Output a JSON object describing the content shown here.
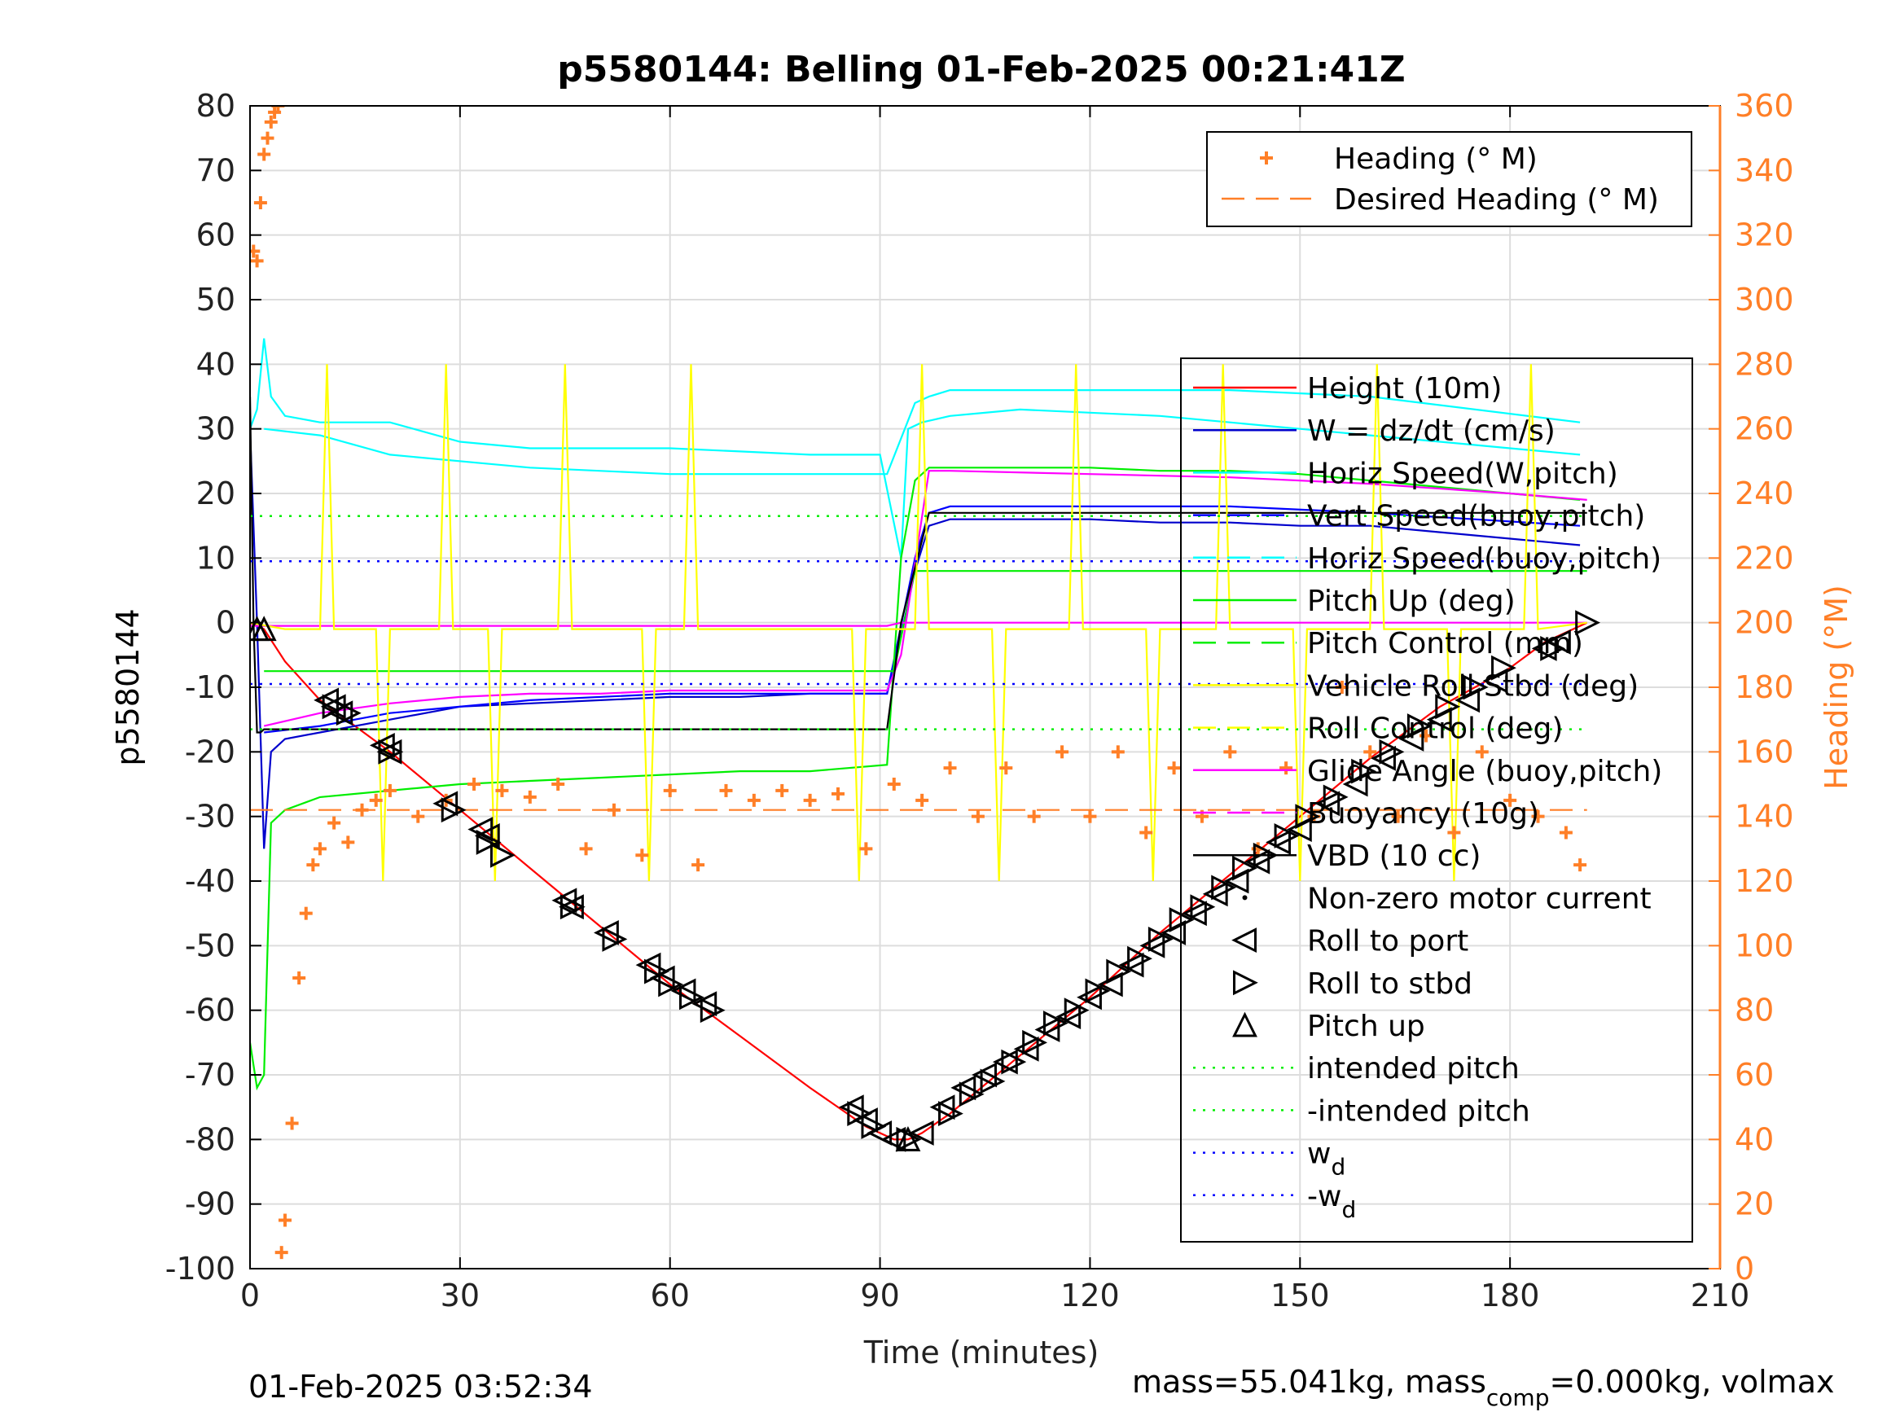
{
  "chart_data": {
    "type": "line",
    "title": "p5580144: Belling 01-Feb-2025 00:21:41Z",
    "xlabel": "Time (minutes)",
    "ylabel_left": "p5580144",
    "ylabel_right": "Heading (°M)",
    "xlim": [
      0,
      210
    ],
    "ylim_left": [
      -100,
      80
    ],
    "ylim_right": [
      0,
      360
    ],
    "xticks": [
      0,
      30,
      60,
      90,
      120,
      150,
      180,
      210
    ],
    "yticks_left": [
      -100,
      -90,
      -80,
      -70,
      -60,
      -50,
      -40,
      -30,
      -20,
      -10,
      0,
      10,
      20,
      30,
      40,
      50,
      60,
      70,
      80
    ],
    "yticks_right": [
      0,
      20,
      40,
      60,
      80,
      100,
      120,
      140,
      160,
      180,
      200,
      220,
      240,
      260,
      280,
      300,
      320,
      340,
      360
    ],
    "grid": true,
    "footer_left": "01-Feb-2025 03:52:34",
    "footer_right": {
      "a": "mass=55.041kg, mass",
      "sub": "comp",
      "b": "=0.000kg, volmax"
    },
    "colors": {
      "heading": "#ff7f27",
      "depth": "#ff0000",
      "w": "#0000cc",
      "horiz_w": "#00ffff",
      "vert_buoy": "#0000ff",
      "pitch": "#00ee00",
      "roll": "#ffff00",
      "glide": "#ff00ff",
      "vbd": "#000000",
      "intended": "#00ee00",
      "wd": "#0000ff"
    },
    "legend_heading": [
      {
        "label": "Heading (° M)",
        "style": "plus",
        "color": "#ff7f27"
      },
      {
        "label": "Desired Heading (° M)",
        "style": "dash",
        "color": "#ff7f27"
      }
    ],
    "legend_main": [
      {
        "label": "Height (10m)",
        "style": "solid",
        "color": "#ff0000"
      },
      {
        "label": "W = dz/dt (cm/s)",
        "style": "solid",
        "color": "#0000cc"
      },
      {
        "label": "Horiz Speed(W,pitch)",
        "style": "solid",
        "color": "#00ffff"
      },
      {
        "label": "Vert Speed(buoy,pitch)",
        "style": "dash",
        "color": "#0000ff"
      },
      {
        "label": "Horiz Speed(buoy,pitch)",
        "style": "dash",
        "color": "#00ffff"
      },
      {
        "label": "Pitch Up (deg)",
        "style": "solid",
        "color": "#00ee00"
      },
      {
        "label": "Pitch Control (mm)",
        "style": "dash",
        "color": "#00ee00"
      },
      {
        "label": "Vehicle Roll Stbd (deg)",
        "style": "solid",
        "color": "#ffff00"
      },
      {
        "label": "Roll Control (deg)",
        "style": "dash",
        "color": "#ffff00"
      },
      {
        "label": "Glide Angle (buoy,pitch)",
        "style": "solid",
        "color": "#ff00ff"
      },
      {
        "label": "Buoyancy (10g)",
        "style": "dash",
        "color": "#ff00ff"
      },
      {
        "label": "VBD (10 cc)",
        "style": "solid",
        "color": "#000000"
      },
      {
        "label": "Non-zero motor current",
        "style": "dot",
        "color": "#000000"
      },
      {
        "label": "Roll to port",
        "style": "tri-left",
        "color": "#000000"
      },
      {
        "label": "Roll to stbd",
        "style": "tri-right",
        "color": "#000000"
      },
      {
        "label": "Pitch up",
        "style": "tri-up",
        "color": "#000000"
      },
      {
        "label": "intended pitch",
        "style": "dotted",
        "color": "#00ee00"
      },
      {
        "label": "-intended pitch",
        "style": "dotted",
        "color": "#00ee00"
      },
      {
        "label": "w",
        "sub": "d",
        "style": "dotted",
        "color": "#0000ff"
      },
      {
        "label": "-w",
        "sub": "d",
        "style": "dotted",
        "color": "#0000ff"
      }
    ],
    "series": [
      {
        "name": "Height (10m)",
        "axis": "left",
        "color": "#ff0000",
        "x": [
          0,
          2,
          5,
          10,
          15,
          20,
          30,
          40,
          50,
          60,
          70,
          80,
          88,
          92,
          94,
          96,
          100,
          110,
          120,
          130,
          140,
          150,
          160,
          170,
          180,
          185,
          191
        ],
        "y": [
          0,
          -1,
          -6,
          -12,
          -16,
          -20,
          -29,
          -38,
          -47,
          -56,
          -64,
          -72,
          -78,
          -80,
          -80,
          -79,
          -76,
          -67,
          -58,
          -48,
          -39,
          -30,
          -21,
          -13,
          -7,
          -3,
          0
        ]
      },
      {
        "name": "W = dz/dt (cm/s)",
        "axis": "left",
        "color": "#0000cc",
        "x": [
          0,
          1,
          2,
          3,
          5,
          10,
          20,
          30,
          40,
          50,
          60,
          70,
          80,
          91,
          93,
          95,
          97,
          100,
          110,
          120,
          130,
          140,
          150,
          160,
          170,
          180,
          190
        ],
        "y": [
          30,
          0,
          -35,
          -20,
          -18,
          -17,
          -15,
          -13,
          -12.5,
          -12,
          -11.5,
          -11.5,
          -11,
          -11,
          -2,
          8,
          15,
          16,
          16,
          16,
          15.5,
          15.5,
          15,
          15,
          14,
          13,
          12
        ]
      },
      {
        "name": "Horiz Speed(W,pitch)",
        "axis": "left",
        "color": "#00ffff",
        "x": [
          0,
          1,
          2,
          3,
          5,
          10,
          20,
          30,
          40,
          50,
          60,
          70,
          80,
          90,
          93,
          94,
          96,
          100,
          110,
          120,
          130,
          140,
          150,
          160,
          170,
          180,
          190
        ],
        "y": [
          30,
          33,
          44,
          35,
          32,
          31,
          31,
          28,
          27,
          27,
          27,
          26.5,
          26,
          26,
          10,
          30,
          31,
          32,
          33,
          32.5,
          32,
          31,
          30,
          29,
          28,
          27,
          26
        ]
      },
      {
        "name": "Vert Speed(buoy,pitch)",
        "axis": "left",
        "color": "#0000ff",
        "x": [
          2,
          10,
          20,
          40,
          60,
          80,
          91,
          95,
          97,
          100,
          120,
          140,
          160,
          190
        ],
        "y": [
          -17,
          -16,
          -14,
          -12,
          -11,
          -11,
          -11,
          10,
          17,
          18,
          18,
          18,
          17,
          15
        ]
      },
      {
        "name": "Horiz Speed(buoy,pitch)",
        "axis": "left",
        "color": "#00ffff",
        "x": [
          2,
          10,
          20,
          40,
          60,
          80,
          91,
          95,
          97,
          100,
          120,
          140,
          160,
          190
        ],
        "y": [
          30,
          29,
          26,
          24,
          23,
          23,
          23,
          34,
          35,
          36,
          36,
          36,
          35,
          31
        ]
      },
      {
        "name": "Pitch Up (deg)",
        "axis": "left",
        "color": "#00ee00",
        "x": [
          0,
          1,
          2,
          3,
          5,
          10,
          20,
          30,
          40,
          50,
          60,
          70,
          80,
          91,
          93,
          95,
          97,
          100,
          110,
          120,
          130,
          140,
          150,
          160,
          170,
          180,
          190
        ],
        "y": [
          -65,
          -72,
          -70,
          -31,
          -29,
          -27,
          -26,
          -25,
          -24.5,
          -24,
          -23.5,
          -23,
          -23,
          -22,
          10,
          22,
          24,
          24,
          24,
          24,
          23.5,
          23.5,
          23,
          22,
          21,
          20,
          19
        ]
      },
      {
        "name": "Pitch Control (mm)",
        "axis": "left",
        "color": "#00ee00",
        "x": [
          2,
          91,
          92,
          95,
          191
        ],
        "y": [
          -7.5,
          -7.5,
          -7.5,
          8,
          8
        ]
      },
      {
        "name": "Glide Angle (buoy,pitch)",
        "axis": "left",
        "color": "#ff00ff",
        "x": [
          2,
          10,
          20,
          30,
          40,
          50,
          60,
          70,
          80,
          91,
          93,
          97,
          100,
          120,
          140,
          160,
          180,
          191
        ],
        "y": [
          -16,
          -14,
          -12.5,
          -11.5,
          -11,
          -11,
          -10.5,
          -10.5,
          -10.5,
          -10.5,
          -5,
          23.5,
          23.5,
          23,
          22.5,
          21.5,
          20,
          19
        ]
      },
      {
        "name": "Buoyancy (10g)",
        "axis": "left",
        "color": "#ff00ff",
        "x": [
          0,
          91,
          93,
          191
        ],
        "y": [
          -0.5,
          -0.5,
          0,
          0
        ]
      },
      {
        "name": "VBD (10 cc)",
        "axis": "left",
        "color": "#000000",
        "x": [
          0,
          0.5,
          1,
          1.5,
          2,
          91,
          93,
          97,
          100,
          191
        ],
        "y": [
          35,
          0,
          -17,
          -17,
          -16.5,
          -16.5,
          0,
          17,
          17,
          17
        ]
      },
      {
        "name": "Vehicle Roll Stbd (deg)",
        "axis": "left",
        "color": "#ffff00",
        "x": [
          0,
          5,
          10,
          11,
          12,
          18,
          19,
          20,
          27,
          28,
          29,
          34,
          35,
          36,
          44,
          45,
          46,
          56,
          57,
          58,
          62,
          63,
          64,
          86,
          87,
          88,
          95,
          96,
          97,
          106,
          107,
          108,
          117,
          118,
          119,
          128,
          129,
          130,
          138,
          139,
          140,
          149,
          150,
          151,
          160,
          161,
          162,
          171,
          172,
          173,
          182,
          183,
          184,
          191
        ],
        "y": [
          0,
          -1,
          -1,
          40,
          -1,
          -1,
          -40,
          -1,
          -1,
          40,
          -1,
          -1,
          -40,
          -1,
          -1,
          40,
          -1,
          -1,
          -40,
          -1,
          -1,
          40,
          -1,
          -1,
          -40,
          -1,
          -1,
          40,
          -1,
          -1,
          -40,
          -1,
          -1,
          40,
          -1,
          -1,
          -40,
          -1,
          -1,
          40,
          -1,
          -1,
          -40,
          -1,
          -1,
          40,
          -1,
          -1,
          -40,
          -1,
          -1,
          40,
          -1,
          0
        ]
      },
      {
        "name": "intended pitch",
        "axis": "left",
        "color": "#00ee00",
        "style": "dotted",
        "x": [
          0,
          191
        ],
        "y": [
          16.5,
          16.5
        ]
      },
      {
        "name": "-intended pitch",
        "axis": "left",
        "color": "#00ee00",
        "style": "dotted",
        "x": [
          0,
          191
        ],
        "y": [
          -16.5,
          -16.5
        ]
      },
      {
        "name": "w_d",
        "axis": "left",
        "color": "#0000ff",
        "style": "dotted",
        "x": [
          0,
          191
        ],
        "y": [
          9.5,
          9.5
        ]
      },
      {
        "name": "-w_d",
        "axis": "left",
        "color": "#0000ff",
        "style": "dotted",
        "x": [
          0,
          191
        ],
        "y": [
          -9.5,
          -9.5
        ]
      },
      {
        "name": "Desired Heading (° M)",
        "axis": "right",
        "color": "#ff7f27",
        "style": "dash",
        "x": [
          0,
          191
        ],
        "y": [
          142,
          142
        ]
      },
      {
        "name": "Heading (° M)",
        "axis": "right",
        "color": "#ff7f27",
        "style": "plus",
        "x": [
          0.5,
          1,
          1.5,
          2,
          2.5,
          3,
          3.5,
          4,
          4.5,
          5,
          6,
          7,
          8,
          9,
          10,
          12,
          14,
          16,
          18,
          20,
          24,
          28,
          32,
          36,
          40,
          44,
          48,
          52,
          56,
          60,
          64,
          68,
          72,
          76,
          80,
          84,
          88,
          92,
          96,
          100,
          104,
          108,
          112,
          116,
          120,
          124,
          128,
          132,
          136,
          140,
          144,
          148,
          152,
          156,
          160,
          164,
          168,
          172,
          176,
          180,
          184,
          188,
          190
        ],
        "y": [
          315,
          312,
          330,
          345,
          350,
          355,
          358,
          360,
          5,
          15,
          45,
          90,
          110,
          125,
          130,
          138,
          132,
          142,
          145,
          148,
          140,
          145,
          150,
          148,
          146,
          150,
          130,
          142,
          128,
          148,
          125,
          148,
          145,
          148,
          145,
          147,
          130,
          150,
          145,
          155,
          140,
          155,
          140,
          160,
          140,
          160,
          135,
          155,
          140,
          160,
          130,
          155,
          140,
          180,
          160,
          140,
          165,
          135,
          160,
          145,
          140,
          135,
          125
        ]
      }
    ],
    "markers": {
      "roll_port": {
        "label": "Roll to port",
        "x": [
          11,
          12,
          13,
          19,
          20,
          28,
          33,
          34,
          45,
          46,
          51,
          57,
          59,
          62,
          65,
          86,
          88,
          90,
          92,
          96,
          99,
          102,
          105,
          108,
          111,
          114,
          117,
          120,
          123,
          126,
          129,
          132,
          135,
          138,
          141,
          144,
          147,
          150,
          154,
          158,
          162,
          166,
          170,
          174,
          178,
          185,
          187
        ],
        "y": [
          -12,
          -13,
          -14,
          -19,
          -20,
          -28,
          -32,
          -33,
          -43,
          -44,
          -48,
          -53,
          -55,
          -57,
          -59,
          -75,
          -77,
          -79,
          -80,
          -79,
          -75,
          -72,
          -70,
          -68,
          -66,
          -63,
          -61,
          -58,
          -56,
          -53,
          -50,
          -48,
          -45,
          -42,
          -40,
          -37,
          -34,
          -32,
          -28,
          -25,
          -21,
          -18,
          -15,
          -12,
          -9,
          -4,
          -3
        ]
      },
      "roll_stbd": {
        "label": "Roll to stbd",
        "x": [
          12,
          14,
          20,
          29,
          34,
          36,
          46,
          52,
          58,
          60,
          63,
          66,
          87,
          89,
          94,
          100,
          103,
          106,
          109,
          112,
          115,
          118,
          121,
          124,
          127,
          130,
          133,
          136,
          139,
          142,
          145,
          148,
          151,
          155,
          159,
          163,
          167,
          171,
          175,
          179,
          186,
          191
        ],
        "y": [
          -13,
          -14,
          -20,
          -29,
          -34,
          -36,
          -44,
          -49,
          -54,
          -56,
          -58,
          -60,
          -76,
          -78,
          -80,
          -76,
          -73,
          -71,
          -68,
          -65,
          -62,
          -60,
          -57,
          -54,
          -52,
          -49,
          -46,
          -44,
          -41,
          -38,
          -36,
          -33,
          -30,
          -27,
          -23,
          -20,
          -16,
          -13,
          -10,
          -7,
          -4,
          0
        ]
      },
      "pitch_up": {
        "label": "Pitch up",
        "x": [
          1,
          2,
          94
        ],
        "y": [
          -1,
          -1,
          -80
        ]
      }
    }
  }
}
